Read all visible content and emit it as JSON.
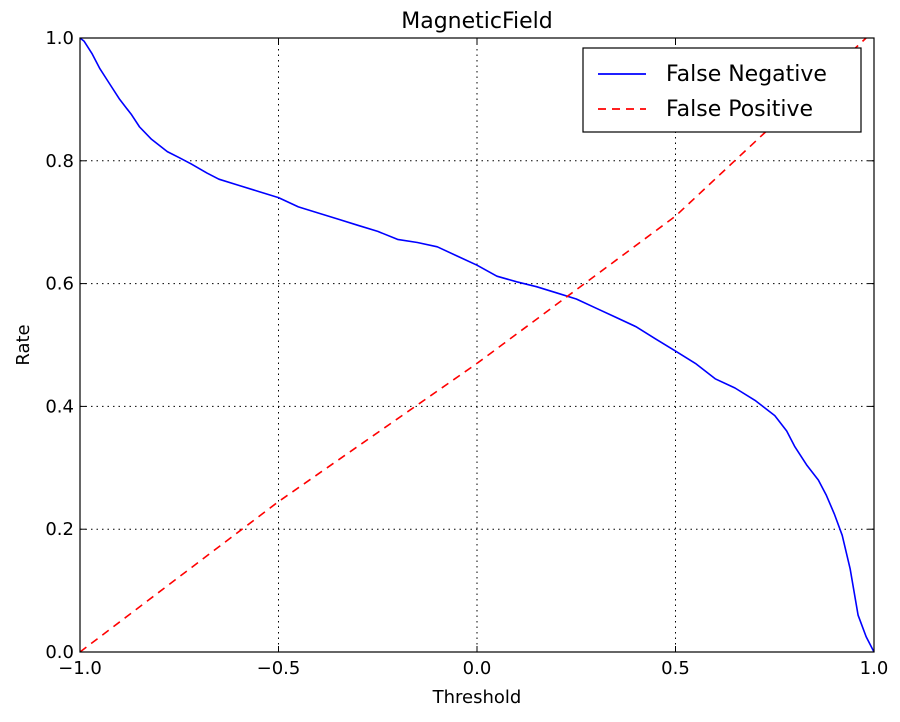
{
  "chart_data": {
    "type": "line",
    "title": "MagneticField",
    "xlabel": "Threshold",
    "ylabel": "Rate",
    "xlim": [
      -1.0,
      1.0
    ],
    "ylim": [
      0.0,
      1.0
    ],
    "grid": true,
    "legend_position": "top-right",
    "x_ticks": [
      -1.0,
      -0.5,
      0.0,
      0.5,
      1.0
    ],
    "x_tick_labels": [
      "−1.0",
      "−0.5",
      "0.0",
      "0.5",
      "1.0"
    ],
    "y_ticks": [
      0.0,
      0.2,
      0.4,
      0.6,
      0.8,
      1.0
    ],
    "y_tick_labels": [
      "0.0",
      "0.2",
      "0.4",
      "0.6",
      "0.8",
      "1.0"
    ],
    "series": [
      {
        "name": "False Negative",
        "color": "#0000ff",
        "style": "solid",
        "x": [
          -1.0,
          -0.99,
          -0.97,
          -0.95,
          -0.93,
          -0.9,
          -0.87,
          -0.85,
          -0.82,
          -0.78,
          -0.75,
          -0.72,
          -0.68,
          -0.65,
          -0.6,
          -0.55,
          -0.5,
          -0.45,
          -0.4,
          -0.35,
          -0.3,
          -0.25,
          -0.2,
          -0.15,
          -0.1,
          -0.05,
          0.0,
          0.05,
          0.1,
          0.15,
          0.2,
          0.25,
          0.3,
          0.35,
          0.4,
          0.45,
          0.5,
          0.55,
          0.6,
          0.65,
          0.7,
          0.75,
          0.78,
          0.8,
          0.83,
          0.86,
          0.88,
          0.9,
          0.92,
          0.94,
          0.96,
          0.98,
          1.0
        ],
        "values": [
          1.0,
          0.995,
          0.975,
          0.95,
          0.93,
          0.9,
          0.875,
          0.855,
          0.835,
          0.815,
          0.805,
          0.795,
          0.78,
          0.77,
          0.76,
          0.75,
          0.74,
          0.725,
          0.715,
          0.705,
          0.695,
          0.685,
          0.672,
          0.667,
          0.66,
          0.645,
          0.63,
          0.612,
          0.603,
          0.595,
          0.585,
          0.575,
          0.56,
          0.545,
          0.53,
          0.51,
          0.49,
          0.47,
          0.445,
          0.43,
          0.41,
          0.385,
          0.36,
          0.335,
          0.305,
          0.28,
          0.255,
          0.225,
          0.19,
          0.135,
          0.06,
          0.025,
          0.0
        ]
      },
      {
        "name": "False Positive",
        "color": "#ff0000",
        "style": "dashed",
        "x": [
          -1.0,
          -0.5,
          0.0,
          0.5,
          0.98
        ],
        "values": [
          0.0,
          0.245,
          0.47,
          0.71,
          1.0
        ]
      }
    ]
  }
}
